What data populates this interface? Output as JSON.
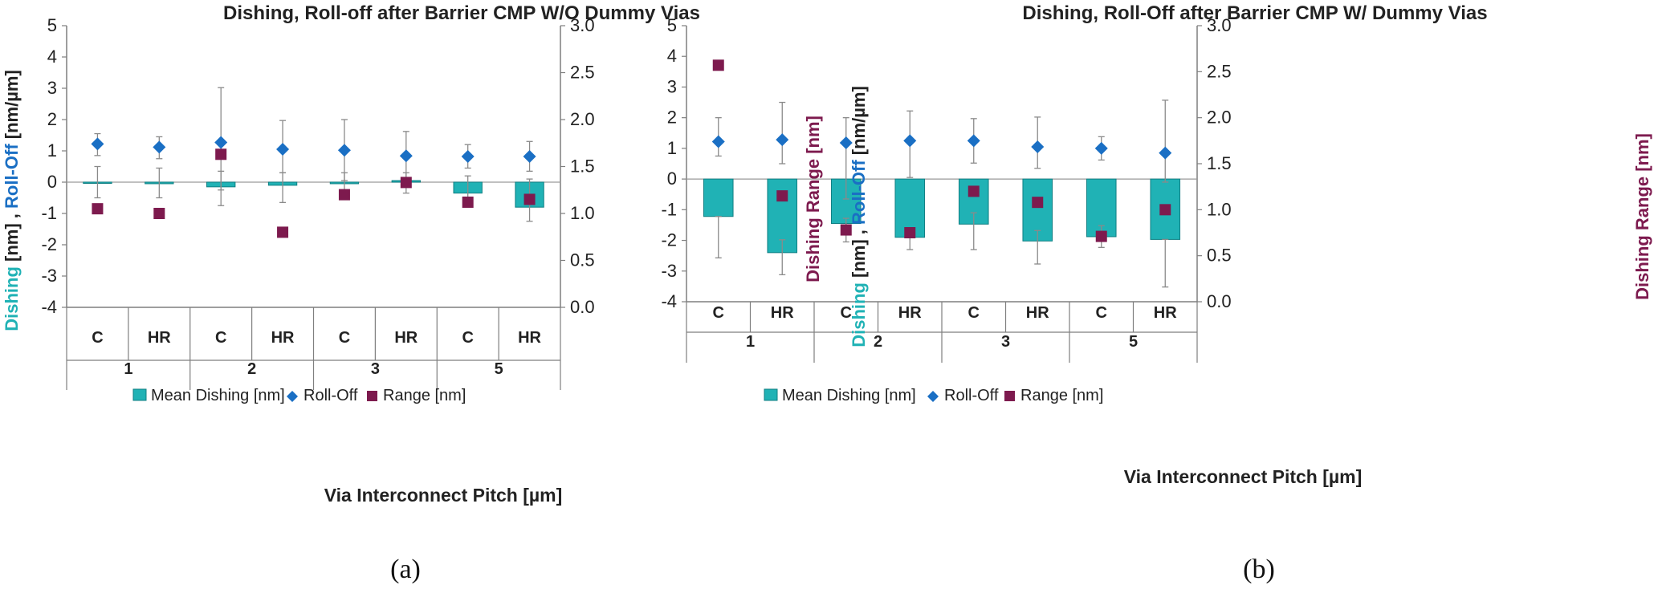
{
  "colors": {
    "dishing": "#20B2B5",
    "rolloff": "#1A6FC4",
    "range": "#7D1A4E",
    "axis": "#7f7f7f",
    "zero": "#9a9a9a",
    "err": "#8a8a8a"
  },
  "chart_data": [
    {
      "type": "bar",
      "panel": "(a)",
      "title": "Dishing, Roll-off after Barrier CMP W/O Dummy Vias",
      "ylabel_parts": [
        "Dishing",
        " [nm] , ",
        "Roll-Off",
        " [nm/µm]"
      ],
      "y2label": "Dishing Range [nm]",
      "xlabel": "Via Interconnect Pitch [µm]",
      "ylim": [
        -4,
        5
      ],
      "yticks": [
        "5",
        "4",
        "3",
        "2",
        "1",
        "0",
        "-1",
        "-2",
        "-3",
        "-4"
      ],
      "y2lim": [
        0,
        3
      ],
      "y2ticks": [
        "3.0",
        "2.5",
        "2.0",
        "1.5",
        "1.0",
        "0.5",
        "0.0"
      ],
      "categories": [
        "C",
        "HR",
        "C",
        "HR",
        "C",
        "HR",
        "C",
        "HR"
      ],
      "groups": [
        "1",
        "2",
        "3",
        "5"
      ],
      "legend": [
        "Mean Dishing [nm]",
        "Roll-Off",
        "Range [nm]"
      ],
      "series": [
        {
          "name": "Mean Dishing [nm]",
          "axis": "left",
          "values": [
            -0.02,
            -0.05,
            -0.15,
            -0.1,
            -0.05,
            0.05,
            -0.35,
            -0.8
          ],
          "err_low": [
            -0.5,
            -0.5,
            -0.75,
            -0.65,
            -0.45,
            -0.35,
            -0.55,
            -1.25
          ],
          "err_high": [
            0.5,
            0.45,
            0.35,
            0.3,
            0.3,
            0.3,
            0.2,
            0.1
          ]
        },
        {
          "name": "Roll-Off",
          "axis": "left",
          "values": [
            1.22,
            1.12,
            1.27,
            1.05,
            1.02,
            0.84,
            0.82,
            0.82
          ],
          "err_low": [
            0.85,
            0.75,
            -0.25,
            0.3,
            0.05,
            0.05,
            0.45,
            0.35
          ],
          "err_high": [
            1.55,
            1.45,
            3.02,
            1.97,
            2.0,
            1.62,
            1.2,
            1.3
          ]
        },
        {
          "name": "Range [nm]",
          "axis": "right",
          "values": [
            1.05,
            1.0,
            1.63,
            0.8,
            1.2,
            1.33,
            1.12,
            1.15
          ]
        }
      ]
    },
    {
      "type": "bar",
      "panel": "(b)",
      "title": "Dishing, Roll-Off after Barrier CMP W/ Dummy Vias",
      "ylabel_parts": [
        "Dishing",
        " [nm] , ",
        "Roll-Off",
        " [nm/µm]"
      ],
      "y2label": "Dishing Range [nm]",
      "xlabel": "Via Interconnect Pitch [µm]",
      "ylim": [
        -4,
        5
      ],
      "yticks": [
        "5",
        "4",
        "3",
        "2",
        "1",
        "0",
        "-1",
        "-2",
        "-3",
        "-4"
      ],
      "y2lim": [
        0,
        3
      ],
      "y2ticks": [
        "3.0",
        "2.5",
        "2.0",
        "1.5",
        "1.0",
        "0.5",
        "0.0"
      ],
      "categories": [
        "C",
        "HR",
        "C",
        "HR",
        "C",
        "HR",
        "C",
        "HR"
      ],
      "groups": [
        "1",
        "2",
        "3",
        "5"
      ],
      "legend": [
        "Mean Dishing [nm]",
        "Roll-Off",
        "Range [nm]"
      ],
      "series": [
        {
          "name": "Mean Dishing [nm]",
          "axis": "left",
          "values": [
            -1.22,
            -2.4,
            -1.45,
            -1.9,
            -1.47,
            -2.02,
            -1.88,
            -1.97
          ],
          "err_low": [
            -2.57,
            -3.12,
            -2.05,
            -2.3,
            -2.3,
            -2.77,
            -2.23,
            -3.52
          ],
          "err_high": [
            -1.22,
            -1.98,
            -1.28,
            -1.9,
            -1.1,
            -1.68,
            -1.52,
            -1.97
          ]
        },
        {
          "name": "Roll-Off",
          "axis": "left",
          "values": [
            1.22,
            1.28,
            1.18,
            1.25,
            1.25,
            1.05,
            1.0,
            0.85
          ],
          "err_low": [
            0.75,
            0.5,
            -0.65,
            0.05,
            0.52,
            0.35,
            0.62,
            -0.1
          ],
          "err_high": [
            2.0,
            2.5,
            2.0,
            2.22,
            1.97,
            2.02,
            1.38,
            2.57
          ]
        },
        {
          "name": "Range [nm]",
          "axis": "right",
          "values": [
            2.57,
            1.15,
            0.78,
            0.75,
            1.2,
            1.08,
            0.71,
            1.0
          ]
        }
      ]
    }
  ]
}
